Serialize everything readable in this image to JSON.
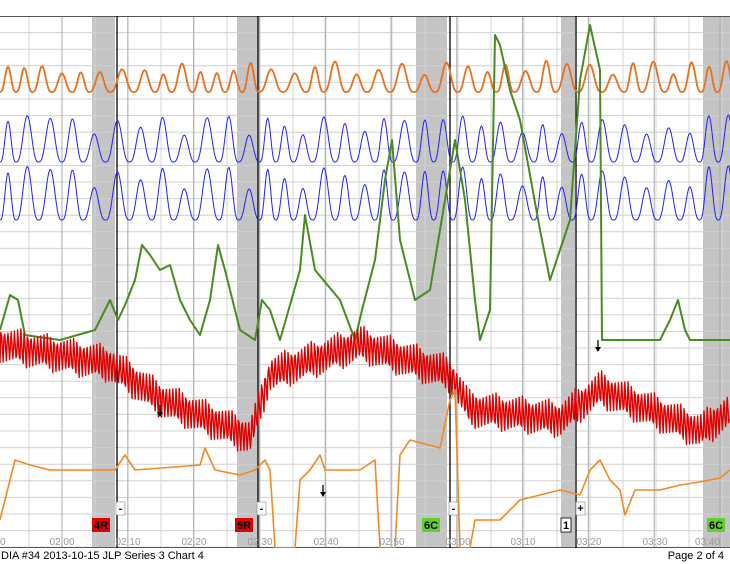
{
  "chart_data": {
    "type": "line",
    "x_tick_labels": [
      "0",
      "02:00",
      "02:10",
      "02:20",
      "02:30",
      "02:40",
      "02:50",
      "03:00",
      "03:10",
      "03:20",
      "03:30",
      "03:40"
    ],
    "events": [
      {
        "label": "4R",
        "color": "#e00000"
      },
      {
        "label": "5R",
        "color": "#e00000"
      },
      {
        "label": "6C",
        "color": "#5ed22a"
      },
      {
        "label": "1",
        "color": "#ffffff"
      },
      {
        "label": "6C",
        "color": "#5ed22a"
      }
    ],
    "markers": [
      "-",
      "-",
      "-",
      "+"
    ],
    "series_colors": {
      "pneumo_upper": "#e8701e",
      "pneumo_lower_1": "#2020ff",
      "pneumo_lower_2": "#2020ff",
      "eda": "#4a8a22",
      "cardio": "#e00000",
      "activity": "#f08a24"
    },
    "grid": true
  },
  "footer": {
    "left": "DIA #34 2013-10-15 JLP Series 3 Chart 4",
    "right": "Page 2 of 4"
  }
}
